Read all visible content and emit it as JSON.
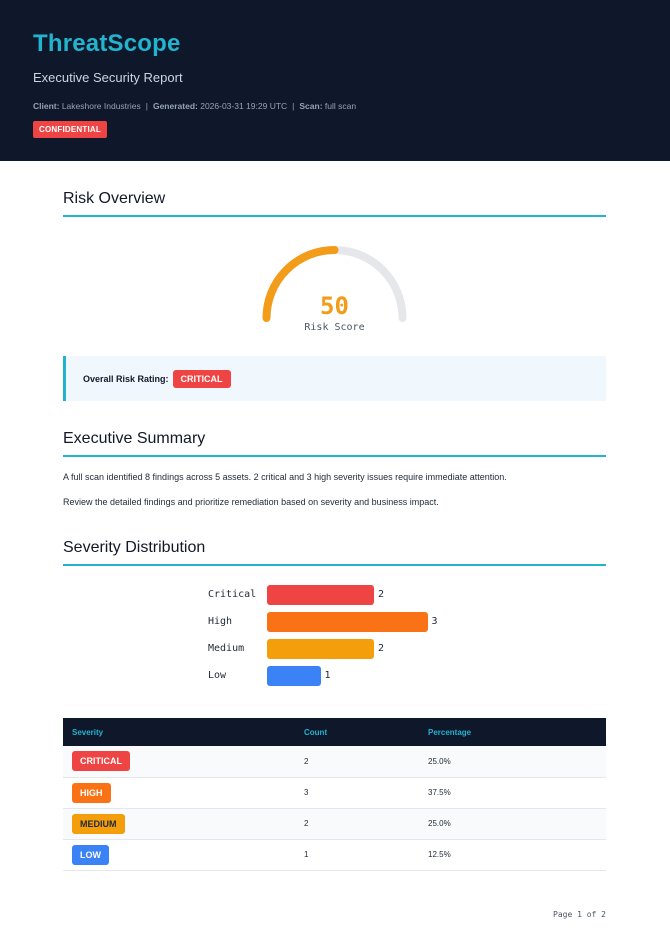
{
  "header": {
    "brand": "ThreatScope",
    "subtitle": "Executive Security Report",
    "client_label": "Client:",
    "client_value": "Lakeshore Industries",
    "generated_label": "Generated:",
    "generated_value": "2026-03-31 19:29 UTC",
    "scan_label": "Scan:",
    "scan_value": "full scan",
    "separator": "|",
    "confidential": "CONFIDENTIAL"
  },
  "risk_overview": {
    "title": "Risk Overview",
    "score": "50",
    "score_max": 100,
    "score_label": "Risk Score",
    "rating_label": "Overall Risk Rating:",
    "rating_value": "CRITICAL"
  },
  "executive_summary": {
    "title": "Executive Summary",
    "paragraphs": [
      "A full scan identified 8 findings across 5 assets. 2 critical and 3 high severity issues require immediate attention.",
      "Review the detailed findings and prioritize remediation based on severity and business impact."
    ]
  },
  "severity_distribution": {
    "title": "Severity Distribution"
  },
  "chart_data": {
    "type": "bar",
    "orientation": "horizontal",
    "categories": [
      "Critical",
      "High",
      "Medium",
      "Low"
    ],
    "values": [
      2,
      3,
      2,
      1
    ],
    "colors": [
      "#ef4444",
      "#f97316",
      "#f59e0b",
      "#3b82f6"
    ],
    "title": "",
    "xlabel": "",
    "ylabel": ""
  },
  "severity_table": {
    "headers": [
      "Severity",
      "Count",
      "Percentage"
    ],
    "rows": [
      {
        "severity": "CRITICAL",
        "count": "2",
        "percentage": "25.0%",
        "color": "#ef4444",
        "text_color": "#ffffff"
      },
      {
        "severity": "HIGH",
        "count": "3",
        "percentage": "37.5%",
        "color": "#f97316",
        "text_color": "#ffffff"
      },
      {
        "severity": "MEDIUM",
        "count": "2",
        "percentage": "25.0%",
        "color": "#f59e0b",
        "text_color": "#1f2937"
      },
      {
        "severity": "LOW",
        "count": "1",
        "percentage": "12.5%",
        "color": "#3b82f6",
        "text_color": "#ffffff"
      }
    ]
  },
  "footer": {
    "page": "Page 1 of 2"
  },
  "colors": {
    "accent": "#22b3cf",
    "header_bg": "#0f172a",
    "gauge": "#f29c1a",
    "gauge_track": "#e5e7eb",
    "critical": "#ef4444"
  }
}
